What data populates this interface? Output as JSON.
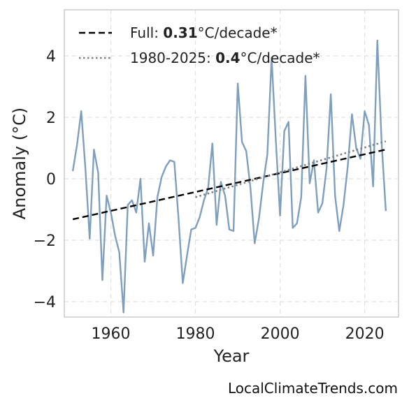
{
  "chart_data": {
    "type": "line",
    "xlabel": "Year",
    "ylabel": "Anomaly (°C)",
    "xlim": [
      1949,
      2028
    ],
    "ylim": [
      -4.5,
      5.5
    ],
    "xticks": [
      1960,
      1980,
      2000,
      2020
    ],
    "yticks": [
      -4,
      -2,
      0,
      2,
      4
    ],
    "ytick_labels": [
      "−4",
      "−2",
      "0",
      "2",
      "4"
    ],
    "grid": true,
    "legend_position": "top-left",
    "series": [
      {
        "kind": "observed",
        "color": "#7f9fbf",
        "x": [
          1951,
          1952,
          1953,
          1954,
          1955,
          1956,
          1957,
          1958,
          1959,
          1960,
          1961,
          1962,
          1963,
          1964,
          1965,
          1966,
          1967,
          1968,
          1969,
          1970,
          1971,
          1972,
          1973,
          1974,
          1975,
          1976,
          1977,
          1978,
          1979,
          1980,
          1981,
          1982,
          1983,
          1984,
          1985,
          1986,
          1987,
          1988,
          1989,
          1990,
          1991,
          1992,
          1993,
          1994,
          1995,
          1996,
          1997,
          1998,
          1999,
          2000,
          2001,
          2002,
          2003,
          2004,
          2005,
          2006,
          2007,
          2008,
          2009,
          2010,
          2011,
          2012,
          2013,
          2014,
          2015,
          2016,
          2017,
          2018,
          2019,
          2020,
          2021,
          2022,
          2023,
          2024,
          2025
        ],
        "y": [
          0.25,
          1.1,
          2.2,
          0.3,
          -1.95,
          0.95,
          0.2,
          -3.3,
          -0.55,
          -1.1,
          -1.85,
          -2.4,
          -4.35,
          -0.85,
          -0.7,
          -1.1,
          0.0,
          -2.7,
          -1.45,
          -2.5,
          -0.6,
          0.05,
          0.4,
          0.6,
          0.55,
          -1.3,
          -3.4,
          -2.5,
          -1.65,
          -1.6,
          -1.25,
          -0.7,
          -0.3,
          1.15,
          -1.5,
          -0.1,
          -0.55,
          -1.65,
          -1.7,
          3.1,
          1.2,
          0.9,
          -0.3,
          -2.1,
          -1.3,
          -0.15,
          0.8,
          3.95,
          1.25,
          -1.2,
          1.55,
          1.85,
          -1.6,
          -1.45,
          -0.6,
          3.35,
          -0.15,
          0.6,
          -1.1,
          -0.8,
          0.35,
          2.75,
          -0.55,
          -1.7,
          -0.85,
          0.4,
          2.1,
          1.0,
          0.65,
          2.2,
          1.75,
          -0.25,
          4.5,
          1.2,
          -1.05
        ]
      },
      {
        "kind": "trend_full",
        "color": "#000000",
        "style": "dashed",
        "x": [
          1951,
          2025
        ],
        "y": [
          -1.32,
          0.95
        ]
      },
      {
        "kind": "trend_recent",
        "color": "#808080",
        "style": "dotted",
        "x": [
          1980,
          2025
        ],
        "y": [
          -0.6,
          1.22
        ]
      }
    ],
    "legend": [
      {
        "style": "dashed",
        "color": "#000000",
        "prefix": "Full: ",
        "value": "0.31",
        "suffix": "°C/decade*"
      },
      {
        "style": "dotted",
        "color": "#808080",
        "prefix": "1980-2025: ",
        "value": "0.4",
        "suffix": "°C/decade*"
      }
    ]
  },
  "footer": {
    "watermark": "LocalClimateTrends.com"
  }
}
